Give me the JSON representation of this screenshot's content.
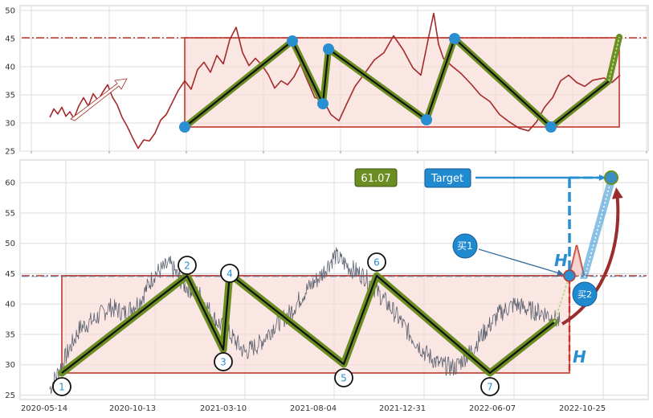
{
  "chart_data": [
    {
      "type": "line",
      "panel": "top",
      "ylim": [
        24,
        50
      ],
      "yticks": [
        "25",
        "30",
        "35",
        "40",
        "45",
        "50"
      ],
      "grid": true,
      "series": [
        {
          "kind": "price",
          "x": [
            0,
            5,
            10,
            15,
            20,
            25,
            30,
            36,
            42,
            48,
            54,
            60,
            66,
            72,
            78,
            84,
            90,
            96,
            103,
            110,
            117,
            124,
            131,
            138,
            145,
            152,
            160,
            168,
            176,
            184,
            192,
            200,
            208,
            216,
            224,
            232,
            240,
            248,
            256,
            264,
            272,
            280,
            288,
            296,
            304,
            312,
            320,
            330,
            340,
            350,
            360,
            370,
            380,
            392,
            404,
            416,
            428,
            440,
            452,
            462,
            472,
            478,
            484,
            490,
            500,
            512,
            524,
            536,
            548,
            560,
            572,
            584,
            596,
            606,
            616,
            626,
            636,
            646,
            656,
            666,
            676,
            690,
            700,
            710
          ],
          "y": [
            31,
            32.5,
            31.6,
            32.8,
            31.2,
            32,
            30.8,
            33,
            34.5,
            33,
            35.2,
            34,
            35.5,
            36.8,
            34.6,
            33.2,
            31,
            29.5,
            27.4,
            25.5,
            27,
            26.8,
            28.2,
            30.5,
            31.5,
            33.5,
            35.8,
            37.5,
            36,
            39.5,
            40.8,
            39,
            42,
            40.5,
            44.8,
            47,
            42.5,
            40.2,
            41.5,
            40.3,
            38.6,
            36.2,
            37.5,
            36.8,
            38.2,
            40.5,
            37.8,
            34.5,
            34.2,
            31.5,
            30.4,
            33.5,
            36.5,
            38.8,
            41.2,
            42.5,
            45.5,
            43,
            39.8,
            38.5,
            45.5,
            49.5,
            44,
            41.5,
            40.2,
            38.8,
            37,
            35,
            33.8,
            31.5,
            30.2,
            29.1,
            28.6,
            30.2,
            32.8,
            34.5,
            37.5,
            38.5,
            37.2,
            36.5,
            37.6,
            38,
            37.2,
            38.5
          ]
        }
      ]
    },
    {
      "type": "line",
      "panel": "bottom",
      "ylim": [
        24,
        64
      ],
      "yticks": [
        "25",
        "30",
        "35",
        "40",
        "45",
        "50",
        "55",
        "60"
      ],
      "xticks": [
        "2020-05-14",
        "2020-10-13",
        "2021-03-10",
        "2021-08-04",
        "2021-12-31",
        "2022-06-07",
        "2022-10-25"
      ],
      "grid": true,
      "series": [
        {
          "kind": "price",
          "x": [
            0,
            20,
            40,
            60,
            80,
            100,
            120,
            140,
            160,
            180,
            200,
            220,
            240,
            260,
            280,
            300,
            320,
            340,
            360,
            380,
            400,
            420,
            440,
            460,
            480,
            500,
            520,
            540,
            560,
            580,
            600,
            620,
            640,
            660,
            680
          ],
          "y": [
            26,
            31,
            36,
            37.5,
            39.5,
            38.5,
            40.5,
            45,
            46.5,
            43,
            41.5,
            37.5,
            35,
            32,
            33.5,
            36.5,
            38.5,
            42,
            44.5,
            48,
            46,
            44.5,
            41.5,
            38.5,
            35,
            32,
            30,
            29.5,
            32,
            35.5,
            38.5,
            40,
            39,
            38.5,
            37
          ]
        }
      ],
      "pattern_points": [
        "1",
        "2",
        "3",
        "4",
        "5",
        "6",
        "7"
      ],
      "value_box": "61.07",
      "labels": {
        "target": "Target",
        "buy1": "买1",
        "buy2": "买2",
        "h": "H"
      }
    }
  ]
}
